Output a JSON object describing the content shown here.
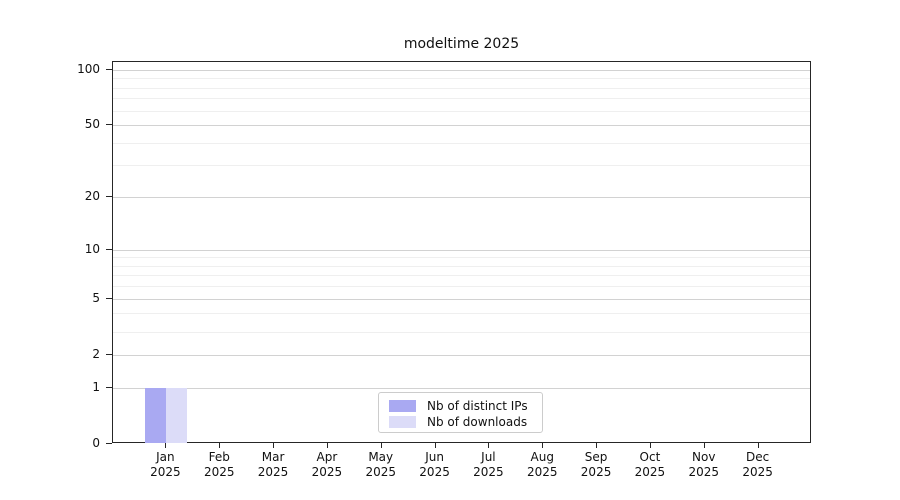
{
  "chart_data": {
    "type": "bar",
    "title": "modeltime 2025",
    "categories": [
      "Jan 2025",
      "Feb 2025",
      "Mar 2025",
      "Apr 2025",
      "May 2025",
      "Jun 2025",
      "Jul 2025",
      "Aug 2025",
      "Sep 2025",
      "Oct 2025",
      "Nov 2025",
      "Dec 2025"
    ],
    "series": [
      {
        "name": "Nb of distinct IPs",
        "color": "#a9a9f2",
        "values": [
          1,
          0,
          0,
          0,
          0,
          0,
          0,
          0,
          0,
          0,
          0,
          0
        ]
      },
      {
        "name": "Nb of downloads",
        "color": "#dcdcf8",
        "values": [
          1,
          0,
          0,
          0,
          0,
          0,
          0,
          0,
          0,
          0,
          0,
          0
        ]
      }
    ],
    "xlabel": "",
    "ylabel": "",
    "yscale": "log1p",
    "ylim": [
      0,
      110
    ],
    "yticks": [
      0,
      1,
      2,
      5,
      10,
      20,
      50,
      100
    ],
    "yticks_minor": [
      3,
      4,
      6,
      7,
      8,
      9,
      30,
      40,
      60,
      70,
      80,
      90
    ],
    "grid": "on",
    "legend_position": "lower center"
  }
}
